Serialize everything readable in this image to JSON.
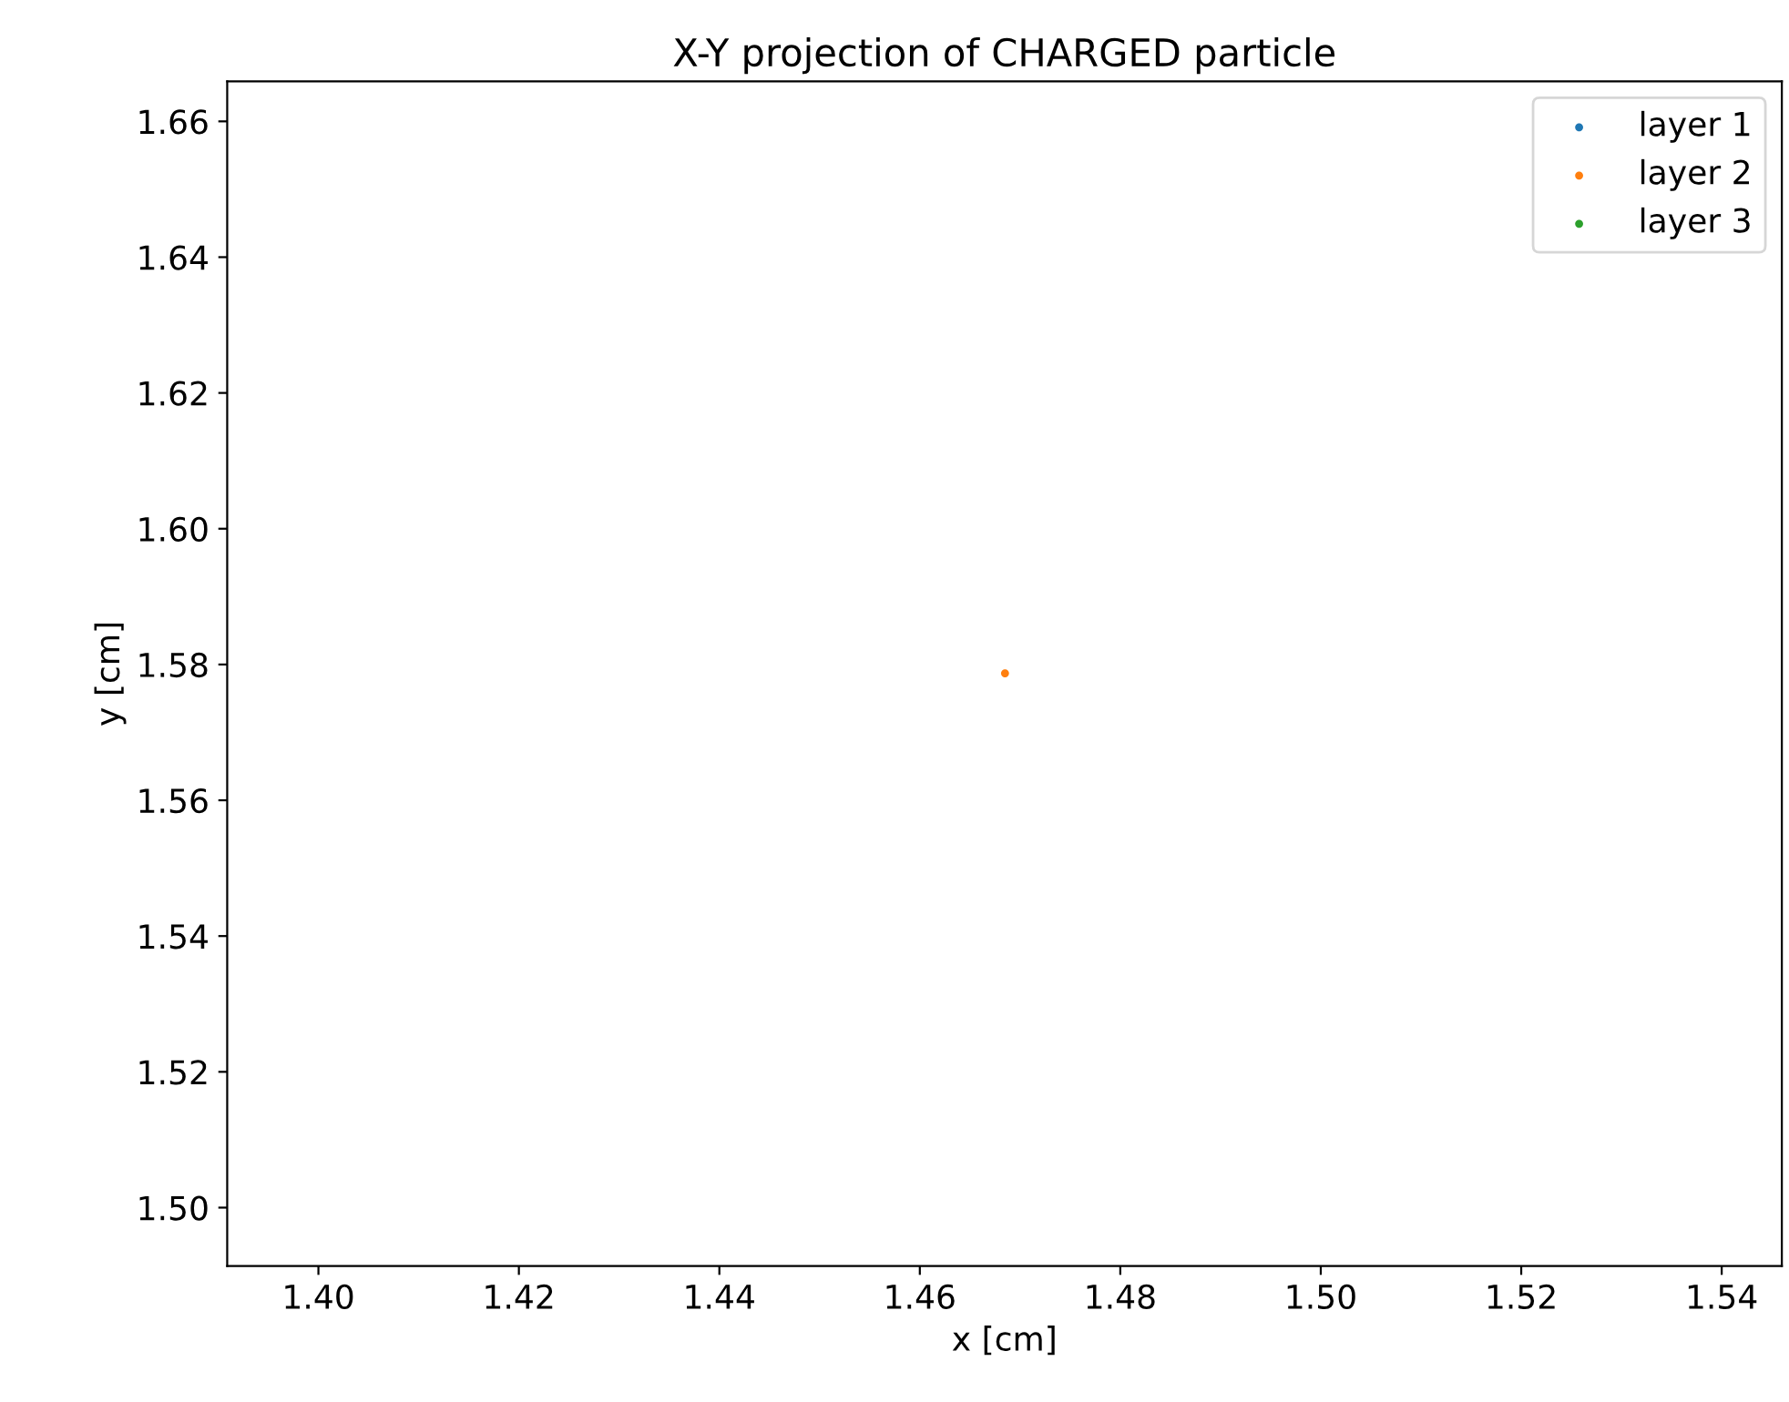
{
  "chart_data": {
    "type": "scatter",
    "title": "X-Y projection of CHARGED particle",
    "xlabel": "x [cm]",
    "ylabel": "y [cm]",
    "series": [
      {
        "name": "layer 1",
        "color": "#1f77b4"
      },
      {
        "name": "layer 2",
        "color": "#ff7f0e",
        "x": [
          1.4685
        ],
        "values": [
          1.5787
        ]
      },
      {
        "name": "layer 3",
        "color": "#2ca02c"
      }
    ],
    "xlim": [
      1.3909,
      1.546
    ],
    "ylim": [
      1.4914,
      1.6659
    ],
    "xticks": [
      {
        "value": 1.4,
        "label": "1.40"
      },
      {
        "value": 1.42,
        "label": "1.42"
      },
      {
        "value": 1.44,
        "label": "1.44"
      },
      {
        "value": 1.46,
        "label": "1.46"
      },
      {
        "value": 1.48,
        "label": "1.48"
      },
      {
        "value": 1.5,
        "label": "1.50"
      },
      {
        "value": 1.52,
        "label": "1.52"
      },
      {
        "value": 1.54,
        "label": "1.54"
      }
    ],
    "yticks": [
      {
        "value": 1.5,
        "label": "1.50"
      },
      {
        "value": 1.52,
        "label": "1.52"
      },
      {
        "value": 1.54,
        "label": "1.54"
      },
      {
        "value": 1.56,
        "label": "1.56"
      },
      {
        "value": 1.58,
        "label": "1.58"
      },
      {
        "value": 1.6,
        "label": "1.60"
      },
      {
        "value": 1.62,
        "label": "1.62"
      },
      {
        "value": 1.64,
        "label": "1.64"
      },
      {
        "value": 1.66,
        "label": "1.66"
      }
    ],
    "legend": "top right",
    "grid": false,
    "marker": "circle"
  }
}
